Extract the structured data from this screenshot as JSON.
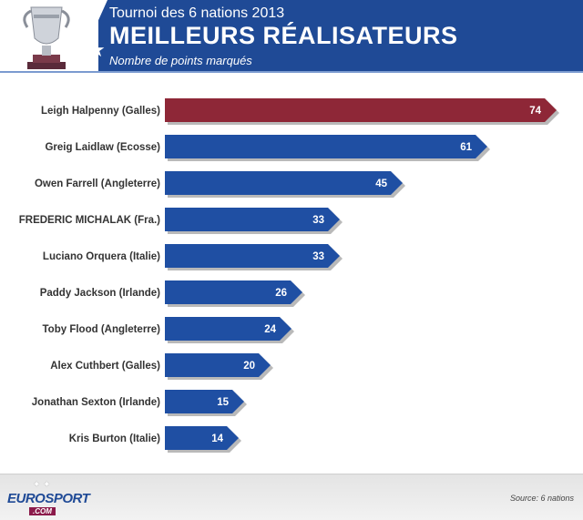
{
  "header": {
    "title_small": "Tournoi des 6 nations 2013",
    "title_big": "MEILLEURS RÉALISATEURS",
    "subtitle": "Nombre de points marqués",
    "trophy_icon": "trophy-icon",
    "star_icon": "star-icon"
  },
  "colors": {
    "header_bg": "#1f4a96",
    "bar_default": "#1f4fa3",
    "bar_highlight": "#8e2737"
  },
  "chart_data": {
    "type": "bar",
    "orientation": "horizontal",
    "categories": [
      "Leigh Halpenny (Galles)",
      "Greig Laidlaw (Ecosse)",
      "Owen Farrell (Angleterre)",
      "FREDERIC MICHALAK (Fra.)",
      "Luciano Orquera (Italie)",
      "Paddy Jackson (Irlande)",
      "Toby Flood (Angleterre)",
      "Alex Cuthbert (Galles)",
      "Jonathan Sexton (Irlande)",
      "Kris Burton (Italie)"
    ],
    "values": [
      74,
      61,
      45,
      33,
      33,
      26,
      24,
      20,
      15,
      14
    ],
    "highlight_index": 0,
    "xlim": [
      0,
      74
    ],
    "grid": false,
    "legend": "none"
  },
  "footer": {
    "brand_part1": "EURO",
    "brand_part2": "SPORT",
    "brand_sub": ".COM",
    "source": "Source: 6 nations"
  }
}
